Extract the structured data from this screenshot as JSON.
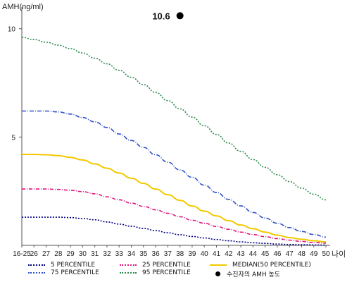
{
  "chart_data": {
    "type": "line",
    "ylabel": "AMH(ng/ml)",
    "xlabel": "나이",
    "ylim": [
      0,
      11
    ],
    "yticks": [
      5,
      10
    ],
    "categories": [
      "16-25",
      "26",
      "27",
      "28",
      "29",
      "30",
      "31",
      "32",
      "33",
      "34",
      "35",
      "36",
      "37",
      "38",
      "39",
      "40",
      "41",
      "42",
      "43",
      "44",
      "45",
      "46",
      "47",
      "48",
      "49",
      "50"
    ],
    "series": [
      {
        "name": "5 PERCENTILE",
        "color": "#000080",
        "dash": "2,2",
        "values": [
          1.3,
          1.3,
          1.3,
          1.3,
          1.28,
          1.24,
          1.18,
          1.08,
          0.98,
          0.88,
          0.78,
          0.68,
          0.58,
          0.49,
          0.41,
          0.34,
          0.27,
          0.21,
          0.16,
          0.12,
          0.09,
          0.06,
          0.04,
          0.03,
          0.02,
          0.01
        ]
      },
      {
        "name": "25 PERCENTILE",
        "color": "#e0147c",
        "dash": "5,2,1,2",
        "values": [
          2.6,
          2.6,
          2.6,
          2.58,
          2.54,
          2.48,
          2.38,
          2.24,
          2.1,
          1.95,
          1.8,
          1.64,
          1.48,
          1.32,
          1.16,
          1.02,
          0.87,
          0.74,
          0.61,
          0.5,
          0.4,
          0.31,
          0.24,
          0.18,
          0.13,
          0.1
        ]
      },
      {
        "name": "MEDIAN(50 PERCENTILE)",
        "color": "#f2c800",
        "dash": "",
        "values": [
          4.2,
          4.2,
          4.18,
          4.14,
          4.06,
          3.94,
          3.76,
          3.56,
          3.34,
          3.1,
          2.86,
          2.6,
          2.34,
          2.08,
          1.82,
          1.58,
          1.36,
          1.14,
          0.94,
          0.77,
          0.61,
          0.47,
          0.36,
          0.28,
          0.21,
          0.16
        ]
      },
      {
        "name": "75 PERCENTILE",
        "color": "#3050c8",
        "dash": "6,2,1,2",
        "values": [
          6.2,
          6.2,
          6.2,
          6.16,
          6.06,
          5.9,
          5.7,
          5.44,
          5.14,
          4.84,
          4.52,
          4.18,
          3.84,
          3.48,
          3.14,
          2.78,
          2.44,
          2.12,
          1.82,
          1.52,
          1.26,
          1.02,
          0.82,
          0.64,
          0.5,
          0.38
        ]
      },
      {
        "name": "95 PERCENTILE",
        "color": "#2e8a4e",
        "dash": "2,2",
        "values": [
          9.6,
          9.5,
          9.38,
          9.24,
          9.08,
          8.88,
          8.64,
          8.38,
          8.08,
          7.76,
          7.42,
          7.06,
          6.68,
          6.3,
          5.92,
          5.52,
          5.12,
          4.72,
          4.34,
          3.96,
          3.6,
          3.26,
          2.94,
          2.64,
          2.36,
          2.1
        ]
      }
    ],
    "patient": {
      "label": "수진자의 AMH 농도",
      "x": "38",
      "value": 10.6,
      "value_label": "10.6",
      "color": "#000000"
    },
    "legend_placement": "bottom",
    "grid": false
  }
}
